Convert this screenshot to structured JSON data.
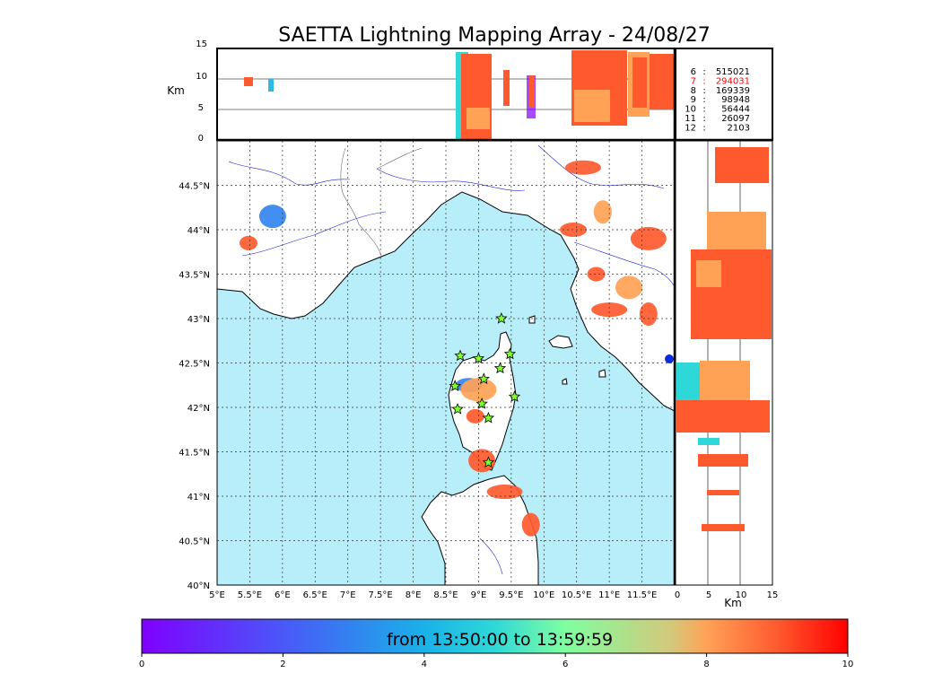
{
  "chart_data": {
    "type": "scatter",
    "title": "SAETTA Lightning Mapping Array - 24/08/27",
    "time_window_label": "from 13:50:00 to 13:59:59",
    "colorbar_ticks": [
      "0",
      "2",
      "4",
      "6",
      "8",
      "10"
    ],
    "map": {
      "x_ticks": [
        "5°E",
        "5.5°E",
        "6°E",
        "6.5°E",
        "7°E",
        "7.5°E",
        "8°E",
        "8.5°E",
        "9°E",
        "9.5°E",
        "10°E",
        "10.5°E",
        "11°E",
        "11.5°E"
      ],
      "y_ticks": [
        "40°N",
        "40.5°N",
        "41°N",
        "41.5°N",
        "42°N",
        "42.5°N",
        "43°N",
        "43.5°N",
        "44°N",
        "44.5°N"
      ],
      "lon_range": [
        5,
        12
      ],
      "lat_range": [
        40,
        45
      ],
      "grid": true
    },
    "altitude_panel_top": {
      "ylabel": "Km",
      "y_ticks": [
        "0",
        "5",
        "10",
        "15"
      ],
      "ylim": [
        0,
        15
      ]
    },
    "altitude_panel_right": {
      "xlabel": "Km",
      "x_ticks": [
        "0",
        "5",
        "10",
        "15"
      ],
      "xlim": [
        0,
        15
      ]
    },
    "station_counts": [
      {
        "stations": "6",
        "sep": ":",
        "count": "515021",
        "color": "#000000"
      },
      {
        "stations": "7",
        "sep": ":",
        "count": "294031",
        "color": "#ff0000"
      },
      {
        "stations": "8",
        "sep": ":",
        "count": "169339",
        "color": "#000000"
      },
      {
        "stations": "9",
        "sep": ":",
        "count": "98948",
        "color": "#000000"
      },
      {
        "stations": "10",
        "sep": ":",
        "count": "56444",
        "color": "#000000"
      },
      {
        "stations": "11",
        "sep": ":",
        "count": "26097",
        "color": "#000000"
      },
      {
        "stations": "12",
        "sep": ":",
        "count": "2103",
        "color": "#000000"
      }
    ],
    "stations": [
      {
        "lon": 8.72,
        "lat": 42.58
      },
      {
        "lon": 9.0,
        "lat": 42.55
      },
      {
        "lon": 9.35,
        "lat": 43.0
      },
      {
        "lon": 9.48,
        "lat": 42.6
      },
      {
        "lon": 9.33,
        "lat": 42.44
      },
      {
        "lon": 9.08,
        "lat": 42.32
      },
      {
        "lon": 8.64,
        "lat": 42.24
      },
      {
        "lon": 9.55,
        "lat": 42.12
      },
      {
        "lon": 9.05,
        "lat": 42.04
      },
      {
        "lon": 8.68,
        "lat": 41.98
      },
      {
        "lon": 9.15,
        "lat": 41.88
      },
      {
        "lon": 9.15,
        "lat": 41.38
      }
    ],
    "storm_clusters": [
      {
        "lon": 5.48,
        "lat": 43.85,
        "level": 9
      },
      {
        "lon": 5.85,
        "lat": 44.15,
        "level": 3
      },
      {
        "lon": 10.6,
        "lat": 44.7,
        "level": 9
      },
      {
        "lon": 10.9,
        "lat": 44.2,
        "level": 8
      },
      {
        "lon": 10.45,
        "lat": 44.0,
        "level": 9
      },
      {
        "lon": 11.6,
        "lat": 43.9,
        "level": 9
      },
      {
        "lon": 10.8,
        "lat": 43.5,
        "level": 9
      },
      {
        "lon": 11.3,
        "lat": 43.35,
        "level": 8
      },
      {
        "lon": 11.0,
        "lat": 43.1,
        "level": 9
      },
      {
        "lon": 11.6,
        "lat": 43.05,
        "level": 9
      },
      {
        "lon": 8.85,
        "lat": 42.25,
        "level": 3
      },
      {
        "lon": 9.0,
        "lat": 42.2,
        "level": 8
      },
      {
        "lon": 8.95,
        "lat": 41.9,
        "level": 9
      },
      {
        "lon": 9.05,
        "lat": 41.4,
        "level": 9
      },
      {
        "lon": 9.4,
        "lat": 41.05,
        "level": 9
      },
      {
        "lon": 9.8,
        "lat": 40.68,
        "level": 9
      }
    ]
  }
}
